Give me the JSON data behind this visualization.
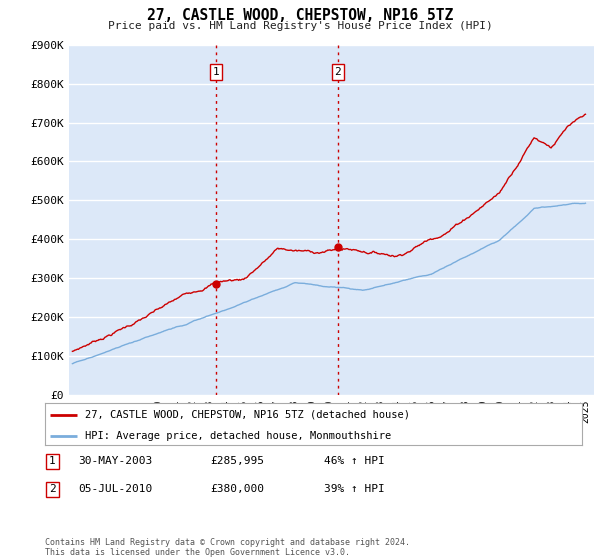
{
  "title": "27, CASTLE WOOD, CHEPSTOW, NP16 5TZ",
  "subtitle": "Price paid vs. HM Land Registry's House Price Index (HPI)",
  "ylim": [
    0,
    900000
  ],
  "yticks": [
    0,
    100000,
    200000,
    300000,
    400000,
    500000,
    600000,
    700000,
    800000,
    900000
  ],
  "ytick_labels": [
    "£0",
    "£100K",
    "£200K",
    "£300K",
    "£400K",
    "£500K",
    "£600K",
    "£700K",
    "£800K",
    "£900K"
  ],
  "background_color": "#ffffff",
  "plot_bg_color": "#dce8f8",
  "grid_color": "#ffffff",
  "sale1_date": 2003.41,
  "sale1_price": 285995,
  "sale2_date": 2010.51,
  "sale2_price": 380000,
  "legend_label_red": "27, CASTLE WOOD, CHEPSTOW, NP16 5TZ (detached house)",
  "legend_label_blue": "HPI: Average price, detached house, Monmouthshire",
  "table_row1": [
    "1",
    "30-MAY-2003",
    "£285,995",
    "46% ↑ HPI"
  ],
  "table_row2": [
    "2",
    "05-JUL-2010",
    "£380,000",
    "39% ↑ HPI"
  ],
  "footnote": "Contains HM Land Registry data © Crown copyright and database right 2024.\nThis data is licensed under the Open Government Licence v3.0.",
  "red_color": "#cc0000",
  "blue_color": "#7aaddc",
  "marker_color": "#cc0000"
}
